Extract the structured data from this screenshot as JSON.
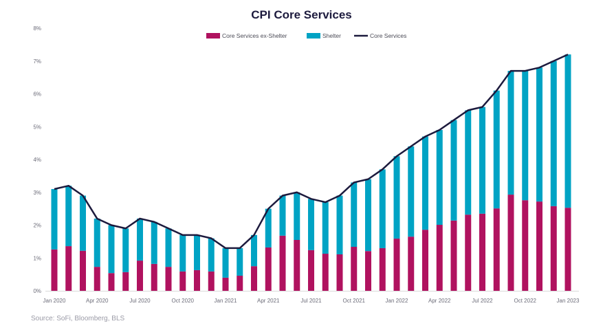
{
  "chart_data": {
    "type": "bar",
    "stacked": true,
    "title": "CPI Core Services",
    "source": "Source: SoFi, Bloomberg, BLS",
    "categories": [
      "Jan 2020",
      "Feb 2020",
      "Mar 2020",
      "Apr 2020",
      "May 2020",
      "Jun 2020",
      "Jul 2020",
      "Aug 2020",
      "Sep 2020",
      "Oct 2020",
      "Nov 2020",
      "Dec 2020",
      "Jan 2021",
      "Feb 2021",
      "Mar 2021",
      "Apr 2021",
      "May 2021",
      "Jun 2021",
      "Jul 2021",
      "Aug 2021",
      "Sep 2021",
      "Oct 2021",
      "Nov 2021",
      "Dec 2021",
      "Jan 2022",
      "Feb 2022",
      "Mar 2022",
      "Apr 2022",
      "May 2022",
      "Jun 2022",
      "Jul 2022",
      "Aug 2022",
      "Sep 2022",
      "Oct 2022",
      "Nov 2022",
      "Dec 2022",
      "Jan 2023"
    ],
    "xtick_labels": [
      "Jan 2020",
      "Apr 2020",
      "Jul 2020",
      "Oct 2020",
      "Jan 2021",
      "Apr 2021",
      "Jul 2021",
      "Oct 2021",
      "Jan 2022",
      "Apr 2022",
      "Jul 2022",
      "Oct 2022",
      "Jan 2023"
    ],
    "ytick_labels": [
      "0%",
      "1%",
      "2%",
      "3%",
      "4%",
      "5%",
      "6%",
      "7%",
      "8%"
    ],
    "ylim": [
      0,
      8
    ],
    "grid": false,
    "legend_position": "top-center",
    "series": [
      {
        "name": "Core Services ex-Shelter",
        "kind": "bar",
        "color": "#b0125f",
        "values": [
          1.26,
          1.36,
          1.22,
          0.73,
          0.54,
          0.57,
          0.92,
          0.82,
          0.73,
          0.59,
          0.63,
          0.59,
          0.4,
          0.46,
          0.75,
          1.32,
          1.68,
          1.55,
          1.24,
          1.13,
          1.11,
          1.34,
          1.21,
          1.3,
          1.59,
          1.65,
          1.86,
          2.01,
          2.14,
          2.32,
          2.35,
          2.51,
          2.93,
          2.76,
          2.72,
          2.58,
          2.53
        ]
      },
      {
        "name": "Shelter",
        "kind": "bar",
        "color": "#00a3c4",
        "values": [
          1.84,
          1.84,
          1.68,
          1.47,
          1.46,
          1.33,
          1.28,
          1.28,
          1.17,
          1.11,
          1.07,
          1.01,
          0.9,
          0.84,
          0.95,
          1.18,
          1.22,
          1.45,
          1.56,
          1.57,
          1.79,
          1.96,
          2.19,
          2.4,
          2.51,
          2.75,
          2.84,
          2.89,
          3.06,
          3.18,
          3.25,
          3.59,
          3.77,
          3.94,
          4.08,
          4.42,
          4.67
        ]
      },
      {
        "name": "Core Services",
        "kind": "line",
        "color": "#1c1a3d",
        "values": [
          3.1,
          3.2,
          2.9,
          2.2,
          2.0,
          1.9,
          2.2,
          2.1,
          1.9,
          1.7,
          1.7,
          1.6,
          1.3,
          1.3,
          1.7,
          2.5,
          2.9,
          3.0,
          2.8,
          2.7,
          2.9,
          3.3,
          3.4,
          3.7,
          4.1,
          4.4,
          4.7,
          4.9,
          5.2,
          5.5,
          5.6,
          6.1,
          6.7,
          6.7,
          6.8,
          7.0,
          7.2
        ]
      }
    ]
  }
}
